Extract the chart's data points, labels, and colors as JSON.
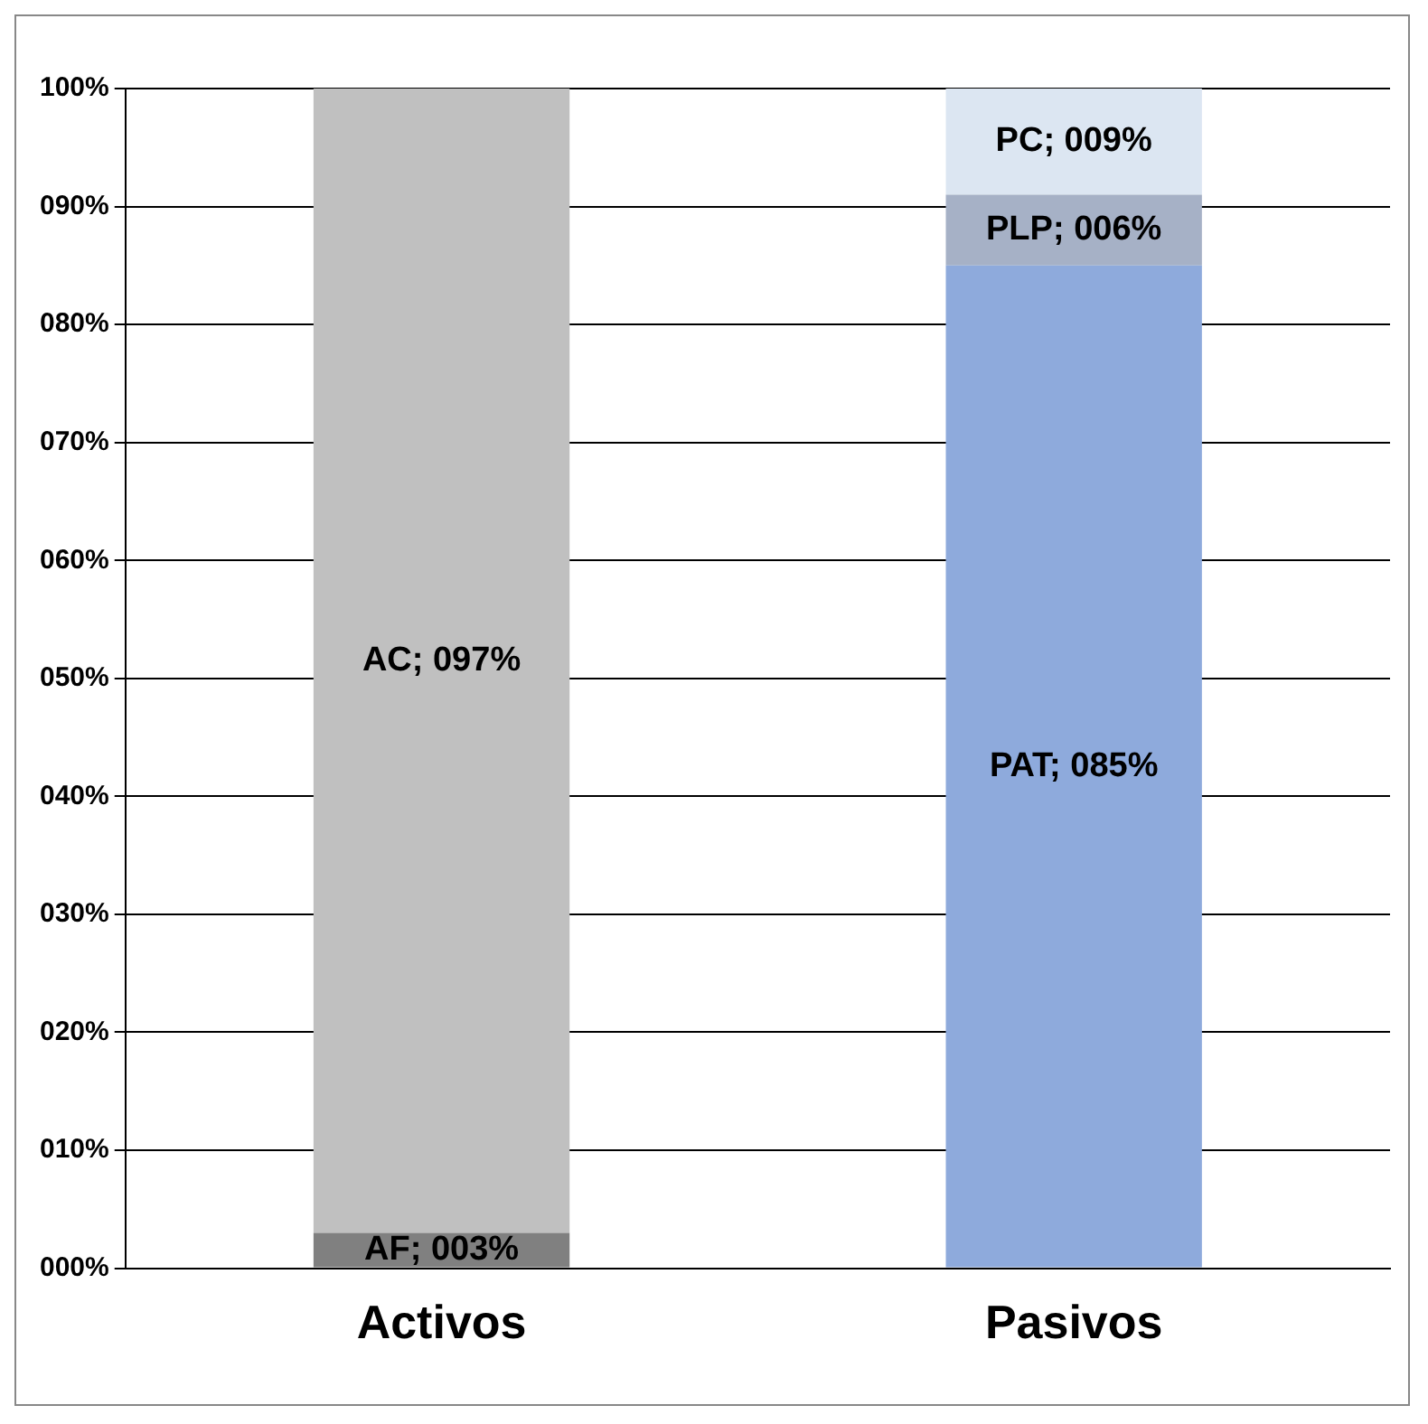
{
  "chart_data": {
    "type": "bar",
    "stacked": true,
    "categories": [
      "Activos",
      "Pasivos"
    ],
    "series": [
      {
        "name": "AF",
        "color": "#808080",
        "values": [
          3,
          null
        ],
        "value_labels": [
          "; 003%",
          null
        ]
      },
      {
        "name": "AC",
        "color": "#c0c0c0",
        "values": [
          97,
          null
        ],
        "value_labels": [
          "; 097%",
          null
        ]
      },
      {
        "name": "PAT",
        "color": "#8eaadc",
        "values": [
          null,
          85
        ],
        "value_labels": [
          null,
          "; 085%"
        ]
      },
      {
        "name": "PLP",
        "color": "#a6b1c6",
        "values": [
          null,
          6
        ],
        "value_labels": [
          null,
          "; 006%"
        ]
      },
      {
        "name": "PC",
        "color": "#dce6f2",
        "values": [
          null,
          9
        ],
        "value_labels": [
          null,
          "; 009%"
        ]
      }
    ],
    "ylim": [
      0,
      100
    ],
    "yticks": [
      {
        "value": 0,
        "label": "000%"
      },
      {
        "value": 10,
        "label": "010%"
      },
      {
        "value": 20,
        "label": "020%"
      },
      {
        "value": 30,
        "label": "030%"
      },
      {
        "value": 40,
        "label": "040%"
      },
      {
        "value": 50,
        "label": "050%"
      },
      {
        "value": 60,
        "label": "060%"
      },
      {
        "value": 70,
        "label": "070%"
      },
      {
        "value": 80,
        "label": "080%"
      },
      {
        "value": 90,
        "label": "090%"
      },
      {
        "value": 100,
        "label": "100%"
      }
    ],
    "grid": "y",
    "legend": false
  }
}
